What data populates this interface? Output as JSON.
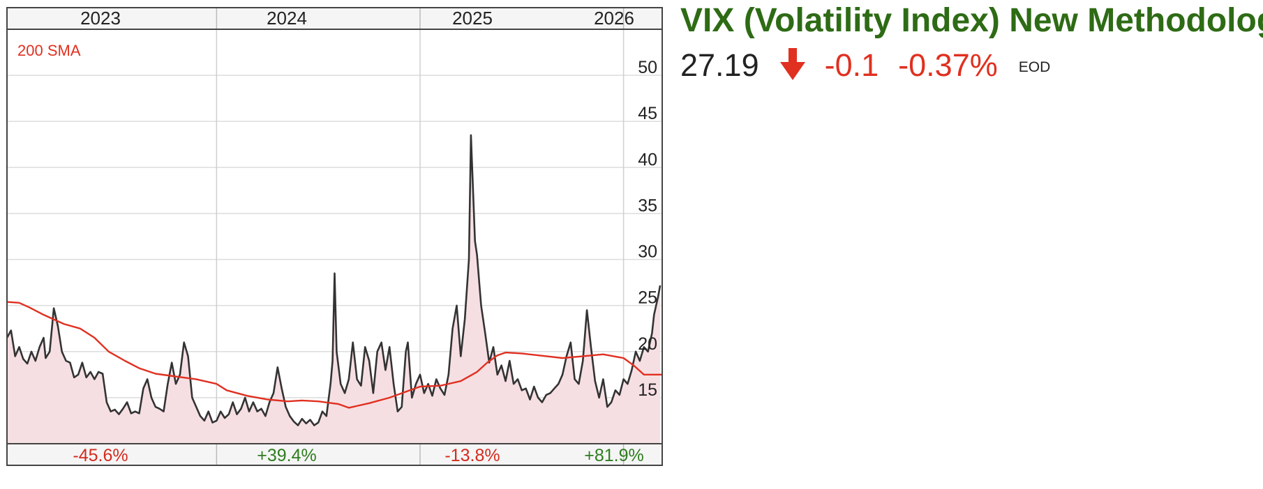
{
  "quote": {
    "title": "VIX (Volatility Index) New Methodology",
    "price": "27.19",
    "direction_icon": "arrow-down-icon",
    "change": "-0.1",
    "change_pct": "-0.37%",
    "session": "EOD",
    "negative_color": "#e03020",
    "title_color": "#2e6b15"
  },
  "chart_data": {
    "type": "line",
    "years": [
      "2023",
      "2024",
      "2025",
      "2026"
    ],
    "yearly_change": [
      "-45.6%",
      "+39.4%",
      "-13.8%",
      "+81.9%"
    ],
    "yearly_change_colors": [
      "#d42b1e",
      "#2e7d1e",
      "#d42b1e",
      "#2e7d1e"
    ],
    "ylim": [
      10,
      55
    ],
    "yticks": [
      15,
      20,
      25,
      30,
      35,
      40,
      45,
      50
    ],
    "xlim": [
      2022.97,
      2026.19
    ],
    "grid": true,
    "legend": "top-left",
    "series": [
      {
        "name": "200 SMA",
        "color": "#e03020",
        "points": [
          [
            2022.97,
            25.4
          ],
          [
            2023.03,
            25.3
          ],
          [
            2023.08,
            24.8
          ],
          [
            2023.15,
            24.0
          ],
          [
            2023.25,
            23.0
          ],
          [
            2023.33,
            22.5
          ],
          [
            2023.4,
            21.5
          ],
          [
            2023.47,
            20.0
          ],
          [
            2023.55,
            19.0
          ],
          [
            2023.62,
            18.2
          ],
          [
            2023.7,
            17.6
          ],
          [
            2023.8,
            17.3
          ],
          [
            2023.9,
            17.0
          ],
          [
            2024.0,
            16.5
          ],
          [
            2024.05,
            15.8
          ],
          [
            2024.15,
            15.2
          ],
          [
            2024.25,
            14.8
          ],
          [
            2024.35,
            14.6
          ],
          [
            2024.42,
            14.7
          ],
          [
            2024.5,
            14.6
          ],
          [
            2024.6,
            14.3
          ],
          [
            2024.65,
            13.9
          ],
          [
            2024.75,
            14.4
          ],
          [
            2024.85,
            15.0
          ],
          [
            2024.95,
            15.8
          ],
          [
            2025.0,
            16.2
          ],
          [
            2025.1,
            16.3
          ],
          [
            2025.2,
            16.8
          ],
          [
            2025.28,
            17.8
          ],
          [
            2025.33,
            18.8
          ],
          [
            2025.38,
            19.6
          ],
          [
            2025.42,
            19.9
          ],
          [
            2025.5,
            19.8
          ],
          [
            2025.58,
            19.6
          ],
          [
            2025.7,
            19.3
          ],
          [
            2025.8,
            19.5
          ],
          [
            2025.9,
            19.7
          ],
          [
            2026.0,
            19.3
          ],
          [
            2026.05,
            18.5
          ],
          [
            2026.1,
            17.5
          ],
          [
            2026.19,
            17.5
          ]
        ]
      },
      {
        "name": "VIX",
        "color": "#333333",
        "fill": "#f6dfe3",
        "points": [
          [
            2022.97,
            21.5
          ],
          [
            2022.99,
            22.3
          ],
          [
            2023.01,
            19.5
          ],
          [
            2023.03,
            20.5
          ],
          [
            2023.05,
            19.2
          ],
          [
            2023.07,
            18.7
          ],
          [
            2023.09,
            20.0
          ],
          [
            2023.11,
            19.0
          ],
          [
            2023.13,
            20.5
          ],
          [
            2023.15,
            21.5
          ],
          [
            2023.16,
            19.3
          ],
          [
            2023.18,
            20.0
          ],
          [
            2023.2,
            24.7
          ],
          [
            2023.22,
            22.8
          ],
          [
            2023.24,
            20.0
          ],
          [
            2023.26,
            19.0
          ],
          [
            2023.28,
            18.8
          ],
          [
            2023.3,
            17.2
          ],
          [
            2023.32,
            17.5
          ],
          [
            2023.34,
            18.8
          ],
          [
            2023.36,
            17.2
          ],
          [
            2023.38,
            17.8
          ],
          [
            2023.4,
            17.0
          ],
          [
            2023.42,
            17.8
          ],
          [
            2023.44,
            17.6
          ],
          [
            2023.46,
            14.5
          ],
          [
            2023.48,
            13.5
          ],
          [
            2023.5,
            13.7
          ],
          [
            2023.52,
            13.2
          ],
          [
            2023.54,
            13.8
          ],
          [
            2023.56,
            14.5
          ],
          [
            2023.58,
            13.3
          ],
          [
            2023.6,
            13.5
          ],
          [
            2023.62,
            13.3
          ],
          [
            2023.64,
            16.0
          ],
          [
            2023.66,
            17.0
          ],
          [
            2023.68,
            15.0
          ],
          [
            2023.7,
            14.0
          ],
          [
            2023.72,
            13.8
          ],
          [
            2023.74,
            13.5
          ],
          [
            2023.76,
            16.5
          ],
          [
            2023.78,
            18.8
          ],
          [
            2023.8,
            16.5
          ],
          [
            2023.82,
            17.5
          ],
          [
            2023.84,
            21.0
          ],
          [
            2023.86,
            19.5
          ],
          [
            2023.88,
            15.0
          ],
          [
            2023.9,
            14.0
          ],
          [
            2023.92,
            13.0
          ],
          [
            2023.94,
            12.5
          ],
          [
            2023.96,
            13.5
          ],
          [
            2023.98,
            12.3
          ],
          [
            2024.0,
            12.5
          ],
          [
            2024.02,
            13.5
          ],
          [
            2024.04,
            12.8
          ],
          [
            2024.06,
            13.2
          ],
          [
            2024.08,
            14.5
          ],
          [
            2024.1,
            13.2
          ],
          [
            2024.12,
            13.8
          ],
          [
            2024.14,
            15.0
          ],
          [
            2024.16,
            13.5
          ],
          [
            2024.18,
            14.5
          ],
          [
            2024.2,
            13.5
          ],
          [
            2024.22,
            13.8
          ],
          [
            2024.24,
            13.0
          ],
          [
            2024.26,
            14.5
          ],
          [
            2024.28,
            15.5
          ],
          [
            2024.3,
            18.3
          ],
          [
            2024.32,
            16.0
          ],
          [
            2024.34,
            14.0
          ],
          [
            2024.36,
            13.0
          ],
          [
            2024.38,
            12.4
          ],
          [
            2024.4,
            12.0
          ],
          [
            2024.42,
            12.7
          ],
          [
            2024.44,
            12.2
          ],
          [
            2024.46,
            12.6
          ],
          [
            2024.48,
            12.0
          ],
          [
            2024.5,
            12.3
          ],
          [
            2024.52,
            13.5
          ],
          [
            2024.54,
            13.0
          ],
          [
            2024.56,
            16.5
          ],
          [
            2024.57,
            19.0
          ],
          [
            2024.58,
            28.5
          ],
          [
            2024.59,
            20.0
          ],
          [
            2024.61,
            16.5
          ],
          [
            2024.63,
            15.5
          ],
          [
            2024.65,
            17.0
          ],
          [
            2024.67,
            21.0
          ],
          [
            2024.69,
            17.0
          ],
          [
            2024.71,
            16.3
          ],
          [
            2024.73,
            20.5
          ],
          [
            2024.75,
            19.0
          ],
          [
            2024.77,
            15.5
          ],
          [
            2024.79,
            20.0
          ],
          [
            2024.81,
            21.0
          ],
          [
            2024.83,
            18.0
          ],
          [
            2024.85,
            20.5
          ],
          [
            2024.87,
            16.5
          ],
          [
            2024.89,
            13.5
          ],
          [
            2024.91,
            14.0
          ],
          [
            2024.93,
            20.0
          ],
          [
            2024.94,
            21.0
          ],
          [
            2024.96,
            15.0
          ],
          [
            2024.98,
            16.5
          ],
          [
            2025.0,
            17.5
          ],
          [
            2025.02,
            15.5
          ],
          [
            2025.04,
            16.5
          ],
          [
            2025.06,
            15.2
          ],
          [
            2025.08,
            17.0
          ],
          [
            2025.1,
            16.0
          ],
          [
            2025.12,
            15.3
          ],
          [
            2025.14,
            17.5
          ],
          [
            2025.16,
            22.5
          ],
          [
            2025.18,
            25.0
          ],
          [
            2025.2,
            19.5
          ],
          [
            2025.22,
            23.5
          ],
          [
            2025.24,
            30.0
          ],
          [
            2025.25,
            43.5
          ],
          [
            2025.27,
            32.0
          ],
          [
            2025.28,
            30.5
          ],
          [
            2025.3,
            25.0
          ],
          [
            2025.32,
            22.0
          ],
          [
            2025.34,
            18.8
          ],
          [
            2025.36,
            20.5
          ],
          [
            2025.38,
            17.5
          ],
          [
            2025.4,
            18.5
          ],
          [
            2025.42,
            16.8
          ],
          [
            2025.44,
            19.0
          ],
          [
            2025.46,
            16.5
          ],
          [
            2025.48,
            17.0
          ],
          [
            2025.5,
            15.8
          ],
          [
            2025.52,
            16.0
          ],
          [
            2025.54,
            14.8
          ],
          [
            2025.56,
            16.2
          ],
          [
            2025.58,
            15.0
          ],
          [
            2025.6,
            14.5
          ],
          [
            2025.62,
            15.3
          ],
          [
            2025.64,
            15.5
          ],
          [
            2025.66,
            16.0
          ],
          [
            2025.68,
            16.5
          ],
          [
            2025.7,
            17.5
          ],
          [
            2025.72,
            19.5
          ],
          [
            2025.74,
            21.0
          ],
          [
            2025.76,
            17.0
          ],
          [
            2025.78,
            16.5
          ],
          [
            2025.8,
            19.0
          ],
          [
            2025.82,
            24.5
          ],
          [
            2025.84,
            20.5
          ],
          [
            2025.86,
            16.8
          ],
          [
            2025.88,
            15.0
          ],
          [
            2025.9,
            17.0
          ],
          [
            2025.92,
            14.0
          ],
          [
            2025.94,
            14.5
          ],
          [
            2025.96,
            15.8
          ],
          [
            2025.98,
            15.3
          ],
          [
            2026.0,
            17.0
          ],
          [
            2026.02,
            16.5
          ],
          [
            2026.04,
            18.0
          ],
          [
            2026.06,
            20.0
          ],
          [
            2026.08,
            19.0
          ],
          [
            2026.1,
            20.5
          ],
          [
            2026.12,
            20.0
          ],
          [
            2026.14,
            22.0
          ],
          [
            2026.15,
            24.0
          ],
          [
            2026.17,
            26.0
          ],
          [
            2026.18,
            27.19
          ]
        ]
      }
    ]
  }
}
